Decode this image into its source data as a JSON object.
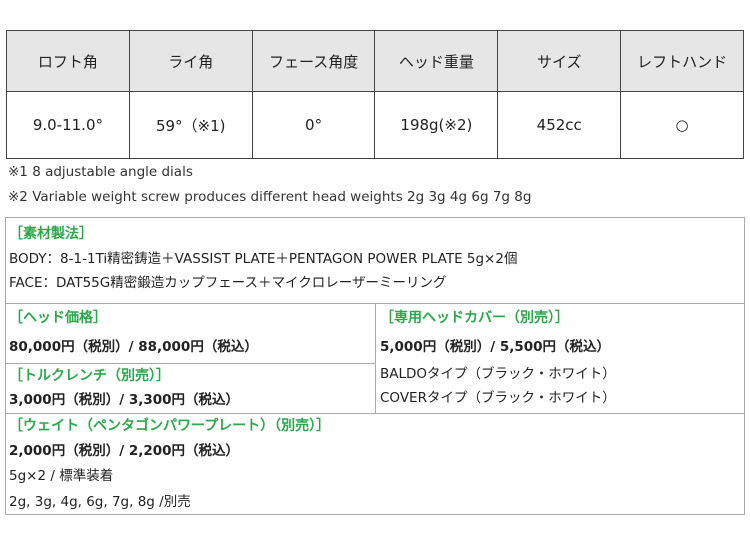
{
  "spec_table": {
    "headers": [
      "ロフト角",
      "ライ角",
      "フェース角度",
      "ヘッド重量",
      "サイズ",
      "レフトハンド"
    ],
    "values": [
      "9.0-11.0°",
      "59°（※1)",
      "0°",
      "198g(※2)",
      "452cc",
      "○"
    ]
  },
  "notes": [
    "※1  8 adjustable angle dials",
    "※2 Variable weight screw produces different head weights 2g 3g 4g 6g 7g 8g"
  ],
  "materials": {
    "title": "［素材製法］",
    "lines": [
      "BODY：8-1-1Ti精密鋳造＋VASSIST PLATE＋PENTAGON POWER PLATE 5g×2個",
      "FACE：DAT55G精密鍛造カップフェース＋マイクロレーザーミーリング"
    ]
  },
  "head_price": {
    "title": "［ヘッド価格］",
    "price": "80,000円（税別）/ 88,000円（税込）"
  },
  "torque_wrench": {
    "title": "［トルクレンチ（別売）］",
    "price": "3,000円（税別）/ 3,300円（税込）"
  },
  "head_cover": {
    "title": "［専用ヘッドカバー（別売）］",
    "price": "5,000円（税別）/ 5,500円（税込）",
    "lines": [
      "BALDOタイプ（ブラック・ホワイト）",
      "COVERタイプ（ブラック・ホワイト）"
    ]
  },
  "weight": {
    "title": "［ウェイト（ペンタゴンパワープレート）（別売）］",
    "price": "2,000円（税別）/ 2,200円（税込）",
    "lines": [
      "5g×2 / 標準装着",
      "2g, 3g, 4g, 6g, 7g, 8g /別売"
    ]
  },
  "colors": {
    "accent": "#2aa84a",
    "header_bg": "#e6e6e6"
  }
}
